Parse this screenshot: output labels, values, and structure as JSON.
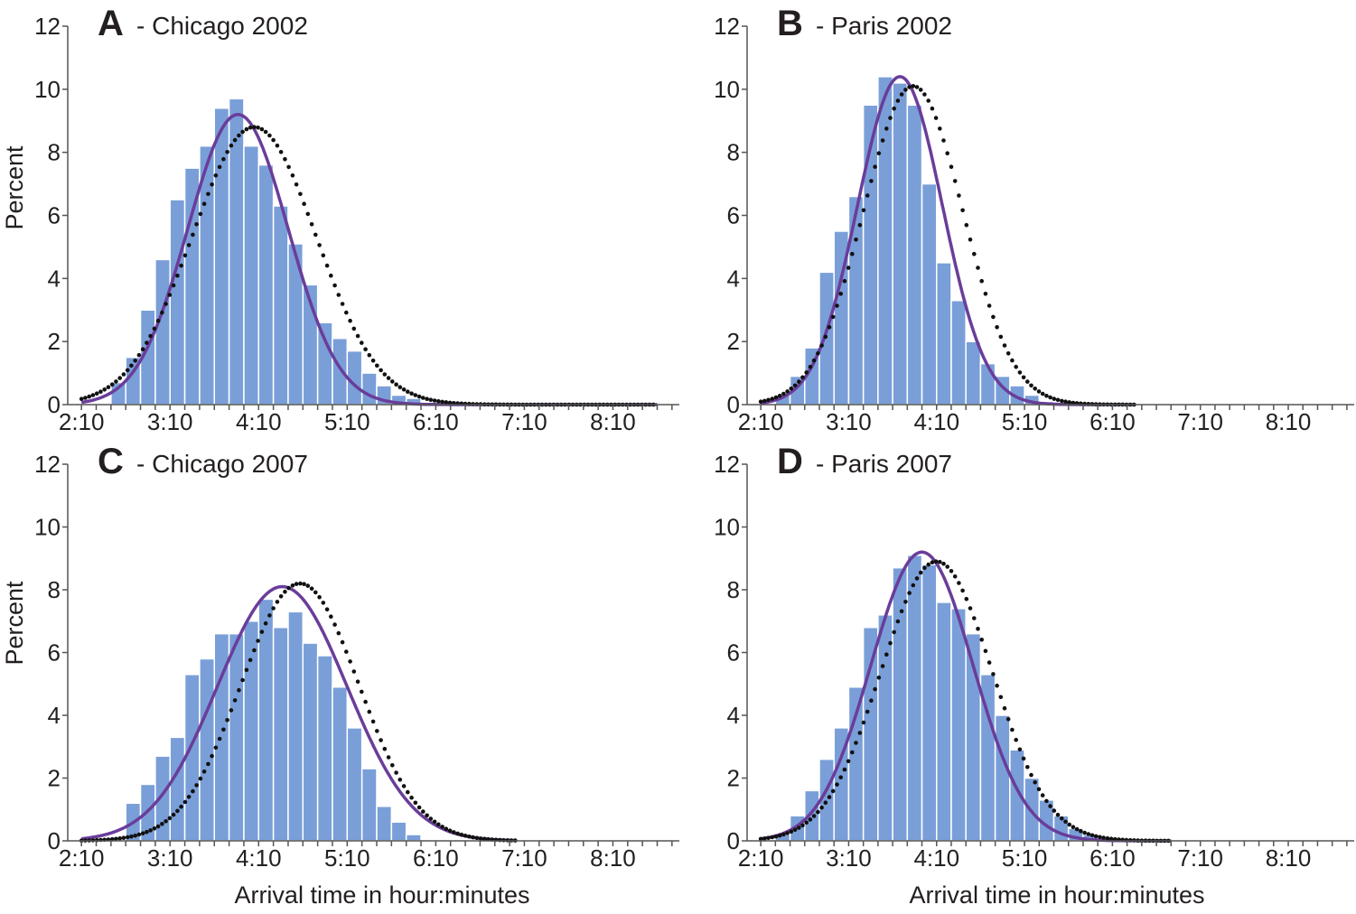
{
  "colors": {
    "bar": "#7a9fd8",
    "bar_edge": "#ffffff",
    "fit_solid": "#6a3d9a",
    "fit_dotted": "#111111",
    "axis": "#555555"
  },
  "x_axis_title": "Arrival time in hour:minutes",
  "y_axis_title": "Percent",
  "chart_data": [
    {
      "type": "bar",
      "panel": "A",
      "title": "A",
      "subtitle": "- Chicago 2002",
      "ylabel": "Percent",
      "xlabel": "",
      "ylim": [
        0,
        12
      ],
      "xlim_minutes": [
        125,
        535
      ],
      "y_ticks": [
        "0",
        "2",
        "4",
        "6",
        "8",
        "10",
        "12"
      ],
      "x_ticks": [
        "2:10",
        "3:10",
        "4:10",
        "5:10",
        "6:10",
        "7:10",
        "8:10"
      ],
      "x_tick_minutes": [
        130,
        190,
        250,
        310,
        370,
        430,
        490
      ],
      "bin_width_minutes": 10,
      "bin_start_minutes": 150,
      "values": [
        0.7,
        1.5,
        3.0,
        4.6,
        6.5,
        7.5,
        8.2,
        9.4,
        9.7,
        8.2,
        7.6,
        6.3,
        5.1,
        3.8,
        2.6,
        2.1,
        1.7,
        1.0,
        0.6,
        0.3,
        0.2
      ],
      "series": [
        {
          "name": "fit-solid",
          "style": "solid",
          "mean_minutes": 236,
          "sd_minutes": 34,
          "peak": 9.2,
          "x_range_minutes": [
            130,
            520
          ]
        },
        {
          "name": "fit-dotted",
          "style": "dotted",
          "mean_minutes": 247,
          "sd_minutes": 42,
          "peak": 8.8,
          "x_range_minutes": [
            130,
            520
          ]
        }
      ]
    },
    {
      "type": "bar",
      "panel": "B",
      "title": "B",
      "subtitle": "- Paris 2002",
      "ylabel": "",
      "xlabel": "",
      "ylim": [
        0,
        12
      ],
      "xlim_minutes": [
        125,
        535
      ],
      "y_ticks": [
        "0",
        "2",
        "4",
        "6",
        "8",
        "10",
        "12"
      ],
      "x_ticks": [
        "2:10",
        "3:10",
        "4:10",
        "5:10",
        "6:10",
        "7:10",
        "8:10"
      ],
      "x_tick_minutes": [
        130,
        190,
        250,
        310,
        370,
        430,
        490
      ],
      "bin_width_minutes": 10,
      "bin_start_minutes": 140,
      "values": [
        0.3,
        0.9,
        1.8,
        4.2,
        5.5,
        6.6,
        9.5,
        10.4,
        10.2,
        9.5,
        7.0,
        4.5,
        3.3,
        2.0,
        1.3,
        0.9,
        0.6,
        0.3,
        0.1
      ],
      "series": [
        {
          "name": "fit-solid",
          "style": "solid",
          "mean_minutes": 225,
          "sd_minutes": 29,
          "peak": 10.4,
          "x_range_minutes": [
            130,
            385
          ]
        },
        {
          "name": "fit-dotted",
          "style": "dotted",
          "mean_minutes": 234,
          "sd_minutes": 34,
          "peak": 10.1,
          "x_range_minutes": [
            130,
            385
          ]
        }
      ]
    },
    {
      "type": "bar",
      "panel": "C",
      "title": "C",
      "subtitle": "- Chicago 2007",
      "ylabel": "Percent",
      "xlabel": "Arrival time in hour:minutes",
      "ylim": [
        0,
        12
      ],
      "xlim_minutes": [
        125,
        535
      ],
      "y_ticks": [
        "0",
        "2",
        "4",
        "6",
        "8",
        "10",
        "12"
      ],
      "x_ticks": [
        "2:10",
        "3:10",
        "4:10",
        "5:10",
        "6:10",
        "7:10",
        "8:10"
      ],
      "x_tick_minutes": [
        130,
        190,
        250,
        310,
        370,
        430,
        490
      ],
      "bin_width_minutes": 10,
      "bin_start_minutes": 160,
      "values": [
        1.2,
        1.8,
        2.7,
        3.3,
        5.3,
        5.8,
        6.6,
        6.6,
        7.0,
        7.7,
        6.8,
        7.3,
        6.3,
        5.9,
        4.9,
        3.6,
        2.3,
        1.1,
        0.6,
        0.2
      ],
      "series": [
        {
          "name": "fit-solid",
          "style": "solid",
          "mean_minutes": 266,
          "sd_minutes": 44,
          "peak": 8.1,
          "x_range_minutes": [
            130,
            425
          ]
        },
        {
          "name": "fit-dotted",
          "style": "dotted",
          "mean_minutes": 278,
          "sd_minutes": 40,
          "peak": 8.2,
          "x_range_minutes": [
            130,
            425
          ]
        }
      ]
    },
    {
      "type": "bar",
      "panel": "D",
      "title": "D",
      "subtitle": "- Paris 2007",
      "ylabel": "",
      "xlabel": "Arrival time in hour:minutes",
      "ylim": [
        0,
        12
      ],
      "xlim_minutes": [
        125,
        535
      ],
      "y_ticks": [
        "0",
        "2",
        "4",
        "6",
        "8",
        "10",
        "12"
      ],
      "x_ticks": [
        "2:10",
        "3:10",
        "4:10",
        "5:10",
        "6:10",
        "7:10",
        "8:10"
      ],
      "x_tick_minutes": [
        130,
        190,
        250,
        310,
        370,
        430,
        490
      ],
      "bin_width_minutes": 10,
      "bin_start_minutes": 140,
      "values": [
        0.2,
        0.8,
        1.6,
        2.6,
        3.6,
        4.9,
        6.8,
        7.2,
        8.7,
        9.1,
        8.8,
        7.6,
        7.4,
        6.6,
        5.3,
        4.0,
        2.9,
        2.0,
        1.3,
        0.8,
        0.4,
        0.2
      ],
      "series": [
        {
          "name": "fit-solid",
          "style": "solid",
          "mean_minutes": 240,
          "sd_minutes": 35,
          "peak": 9.2,
          "x_range_minutes": [
            130,
            410
          ]
        },
        {
          "name": "fit-dotted",
          "style": "dotted",
          "mean_minutes": 250,
          "sd_minutes": 38,
          "peak": 8.9,
          "x_range_minutes": [
            130,
            410
          ]
        }
      ]
    }
  ]
}
